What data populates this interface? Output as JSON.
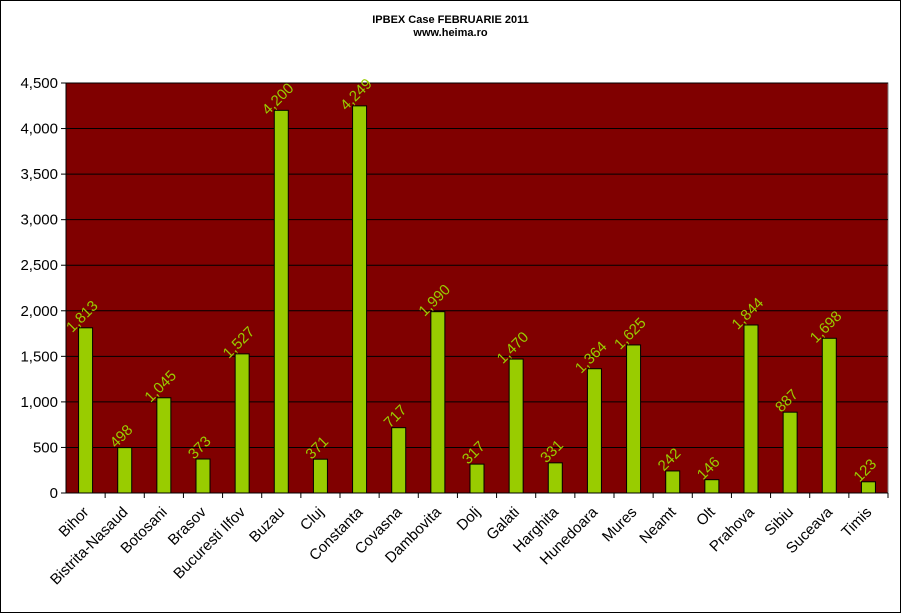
{
  "chart_data": {
    "type": "bar",
    "title": "IPBEX Case FEBRUARIE 2011",
    "subtitle": "www.heima.ro",
    "xlabel": "",
    "ylabel": "",
    "ylim": [
      0,
      4500
    ],
    "yticks": [
      "0",
      "500",
      "1,000",
      "1,500",
      "2,000",
      "2,500",
      "3,000",
      "3,500",
      "4,000",
      "4,500"
    ],
    "ytick_values": [
      0,
      500,
      1000,
      1500,
      2000,
      2500,
      3000,
      3500,
      4000,
      4500
    ],
    "grid": true,
    "legend": "none",
    "categories": [
      "Bihor",
      "Bistrita-Nasaud",
      "Botosani",
      "Brasov",
      "Bucuresti Ilfov",
      "Buzau",
      "Cluj",
      "Constanta",
      "Covasna",
      "Dambovita",
      "Dolj",
      "Galati",
      "Harghita",
      "Hunedoara",
      "Mures",
      "Neamt",
      "Olt",
      "Prahova",
      "Sibiu",
      "Suceava",
      "Timis"
    ],
    "values": [
      1813,
      498,
      1045,
      373,
      1527,
      4200,
      371,
      4249,
      717,
      1990,
      317,
      1470,
      331,
      1364,
      1625,
      242,
      146,
      1844,
      887,
      1698,
      123
    ],
    "value_labels": [
      "1,813",
      "498",
      "1,045",
      "373",
      "1,527",
      "4,200",
      "371",
      "4,249",
      "717",
      "1,990",
      "317",
      "1,470",
      "331",
      "1,364",
      "1,625",
      "242",
      "146",
      "1,844",
      "887",
      "1,698",
      "123"
    ],
    "colors": {
      "plot_background": "#800000",
      "bar_fill": "#99CC00",
      "bar_stroke": "#000000",
      "gridline": "#000000",
      "data_label": "#99CC00"
    }
  }
}
